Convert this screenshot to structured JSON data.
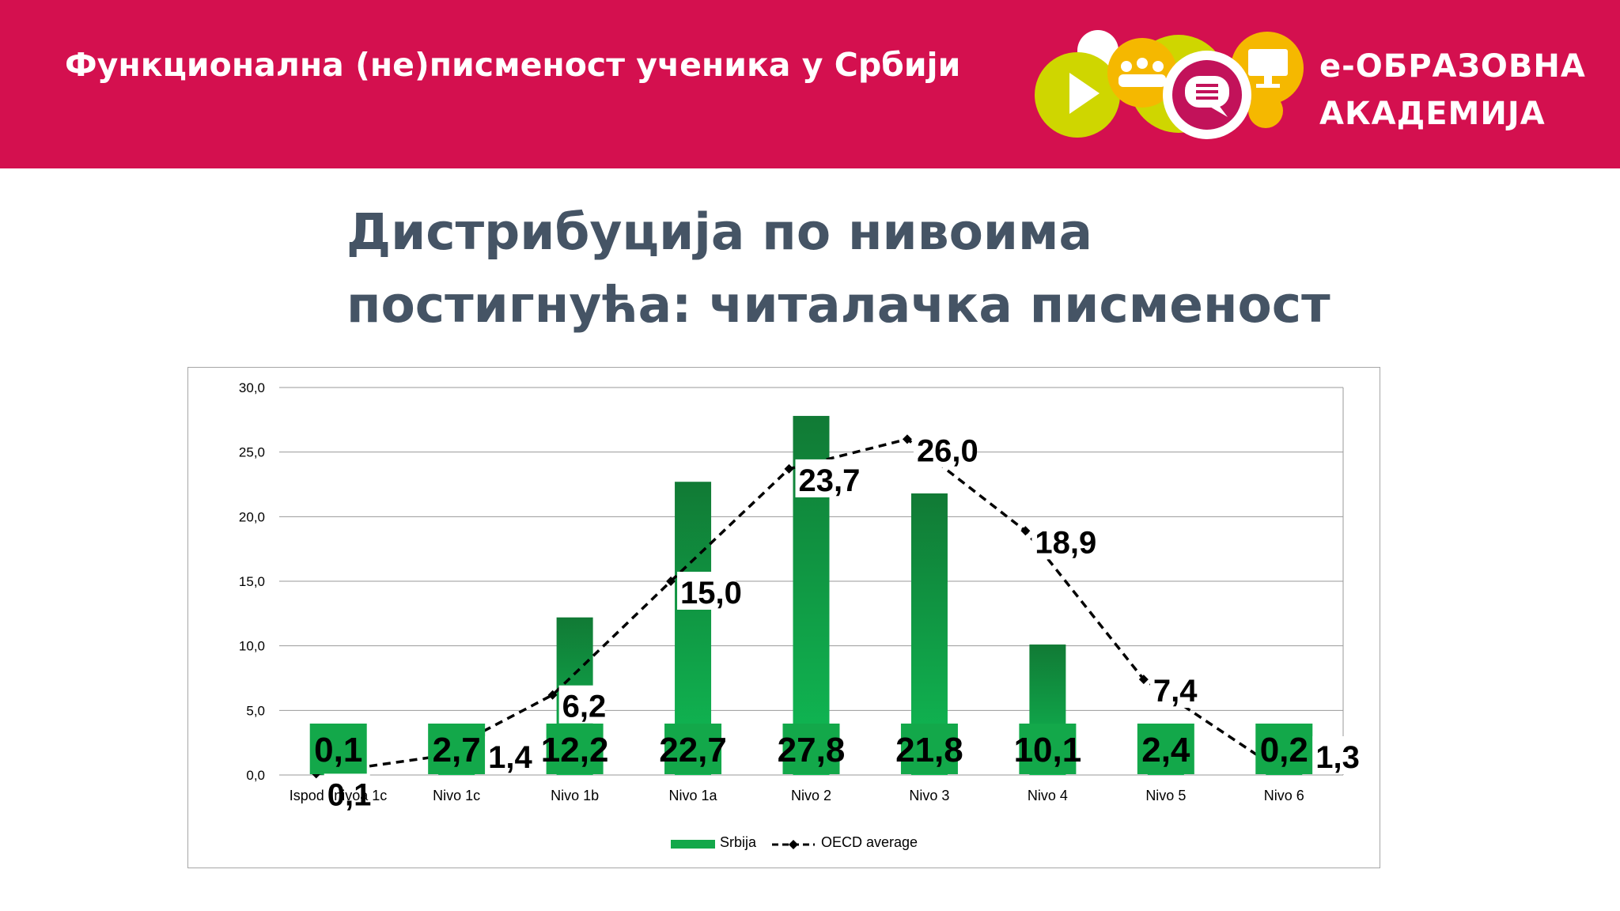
{
  "header": {
    "title": "Функционална (не)писменост ученика у Србији",
    "logo_line1": "e-ОБРАЗОВНА",
    "logo_line2": "АКАДЕМИЈА"
  },
  "slide": {
    "title_line1": "Дистрибуција по нивоима",
    "title_line2": "постигнућа: читалачка писменост"
  },
  "colors": {
    "header_bg": "#d4104f",
    "title_text": "#455465",
    "bar_dark": "#117a35",
    "bar_light": "#0fbc55",
    "logo_yellow": "#f5b800",
    "logo_lime": "#cfd600",
    "logo_magenta": "#c2125a"
  },
  "chart_data": {
    "type": "bar",
    "categories": [
      "Ispod nivoa 1c",
      "Nivo 1c",
      "Nivo 1b",
      "Nivo 1a",
      "Nivo 2",
      "Nivo 3",
      "Nivo 4",
      "Nivo 5",
      "Nivo 6"
    ],
    "category_labels": [
      "Ispod    nivoa 1c",
      "Nivo 1c",
      "Nivo 1b",
      "Nivo 1a",
      "Nivo 2",
      "Nivo 3",
      "Nivo 4",
      "Nivo 5",
      "Nivo 6"
    ],
    "series": [
      {
        "name": "Srbija",
        "type": "bar",
        "values": [
          0.1,
          2.7,
          12.2,
          22.7,
          27.8,
          21.8,
          10.1,
          2.4,
          0.2
        ],
        "labels": [
          "0,1",
          "2,7",
          "12,2",
          "22,7",
          "27,8",
          "21,8",
          "10,1",
          "2,4",
          "0,2"
        ]
      },
      {
        "name": "OECD average",
        "type": "line",
        "style": "dashed",
        "values": [
          0.1,
          1.4,
          6.2,
          15.0,
          23.7,
          26.0,
          18.9,
          7.4,
          1.3
        ],
        "labels": [
          "0,1",
          "1,4",
          "6,2",
          "15,0",
          "23,7",
          "26,0",
          "18,9",
          "7,4",
          "1,3"
        ]
      }
    ],
    "ylim": [
      0,
      30
    ],
    "yticks": [
      0,
      5,
      10,
      15,
      20,
      25,
      30
    ],
    "ytick_labels": [
      "0,0",
      "5,0",
      "10,0",
      "15,0",
      "20,0",
      "25,0",
      "30,0"
    ],
    "grid": true,
    "legend": "bottom"
  }
}
